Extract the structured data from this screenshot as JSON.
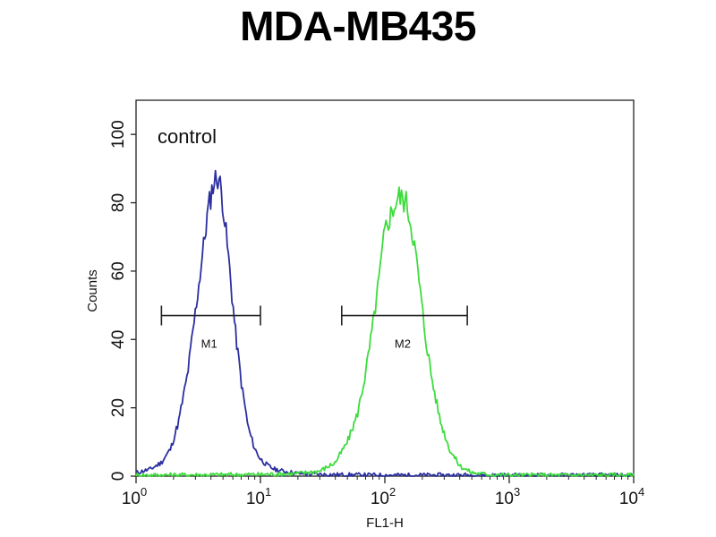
{
  "chart_data": {
    "type": "line",
    "title": "MDA-MB435",
    "xlabel": "FL1-H",
    "ylabel": "Counts",
    "x_scale": "log",
    "xlim": [
      1,
      10000
    ],
    "ylim": [
      0,
      110
    ],
    "x_ticks": [
      {
        "value": 1,
        "base": "10",
        "exp": "0"
      },
      {
        "value": 10,
        "base": "10",
        "exp": "1"
      },
      {
        "value": 100,
        "base": "10",
        "exp": "2"
      },
      {
        "value": 1000,
        "base": "10",
        "exp": "3"
      },
      {
        "value": 10000,
        "base": "10",
        "exp": "4"
      }
    ],
    "y_ticks": [
      0,
      20,
      40,
      60,
      80,
      100
    ],
    "annotation": "control",
    "grid": false,
    "series": [
      {
        "color": "#2b2f9e",
        "x": [
          1,
          1.3,
          1.6,
          1.9,
          2.2,
          2.6,
          3.0,
          3.4,
          3.8,
          4.2,
          4.6,
          5.0,
          5.6,
          6.3,
          7.1,
          8.0,
          9.0,
          10,
          11.5,
          13,
          15,
          20,
          30,
          50,
          100,
          200,
          500,
          1000,
          3000,
          10000
        ],
        "y": [
          1,
          2,
          4,
          8,
          16,
          30,
          48,
          64,
          78,
          86,
          88,
          80,
          62,
          42,
          26,
          14,
          8,
          5,
          3,
          2,
          1.5,
          0.8,
          0.5,
          0.4,
          0.3,
          0.3,
          0.3,
          0.3,
          0.3,
          0.3
        ]
      },
      {
        "color": "#3ddc3d",
        "x": [
          1,
          10,
          20,
          30,
          40,
          50,
          60,
          70,
          80,
          90,
          100,
          115,
          130,
          150,
          170,
          190,
          210,
          240,
          280,
          330,
          400,
          500,
          700,
          1000,
          3000,
          10000
        ],
        "y": [
          0.3,
          0.5,
          0.8,
          1.5,
          4,
          10,
          18,
          30,
          44,
          58,
          72,
          78,
          82,
          80,
          70,
          56,
          42,
          28,
          16,
          8,
          3,
          1,
          0.5,
          0.3,
          0.3,
          0.3
        ]
      }
    ],
    "markers": [
      {
        "label": "M1",
        "x_start": 1.6,
        "x_end": 10,
        "y": 47
      },
      {
        "label": "M2",
        "x_start": 45,
        "x_end": 460,
        "y": 47
      }
    ]
  }
}
